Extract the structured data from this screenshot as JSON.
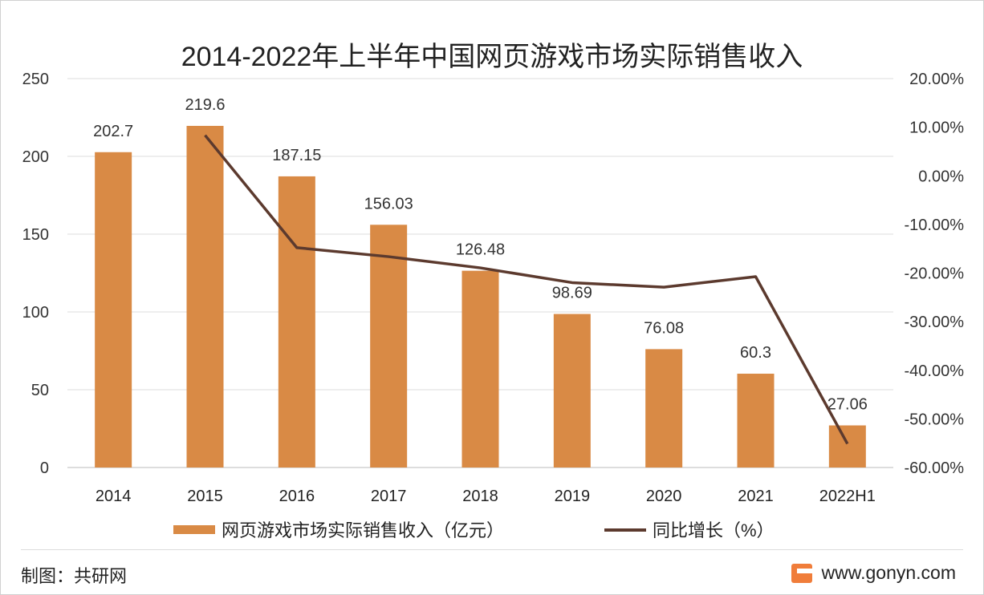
{
  "chart_data": {
    "type": "bar+line",
    "title": "2014-2022年上半年中国网页游戏市场实际销售收入",
    "categories": [
      "2014",
      "2015",
      "2016",
      "2017",
      "2018",
      "2019",
      "2020",
      "2021",
      "2022H1"
    ],
    "series": [
      {
        "name": "网页游戏市场实际销售收入（亿元）",
        "type": "bar",
        "axis": "left",
        "color": "#D98A45",
        "values": [
          202.7,
          219.6,
          187.15,
          156.03,
          126.48,
          98.69,
          76.08,
          60.3,
          27.06
        ],
        "labels": [
          "202.7",
          "219.6",
          "187.15",
          "156.03",
          "126.48",
          "98.69",
          "76.08",
          "60.3",
          "27.06"
        ]
      },
      {
        "name": "同比增长（%）",
        "type": "line",
        "axis": "right",
        "color": "#5C3A2E",
        "values": [
          null,
          8.34,
          -14.78,
          -16.63,
          -18.94,
          -21.97,
          -22.91,
          -20.74,
          -55.12
        ]
      }
    ],
    "left_axis": {
      "min": 0,
      "max": 250,
      "ticks": [
        "0",
        "50",
        "100",
        "150",
        "200",
        "250"
      ]
    },
    "right_axis": {
      "min": -60,
      "max": 20,
      "ticks": [
        "-60.00%",
        "-50.00%",
        "-40.00%",
        "-30.00%",
        "-20.00%",
        "-10.00%",
        "0.00%",
        "10.00%",
        "20.00%"
      ]
    },
    "grid": true,
    "legend": "bottom"
  },
  "footer": {
    "credit": "制图：共研网",
    "site": "www.gonyn.com"
  }
}
